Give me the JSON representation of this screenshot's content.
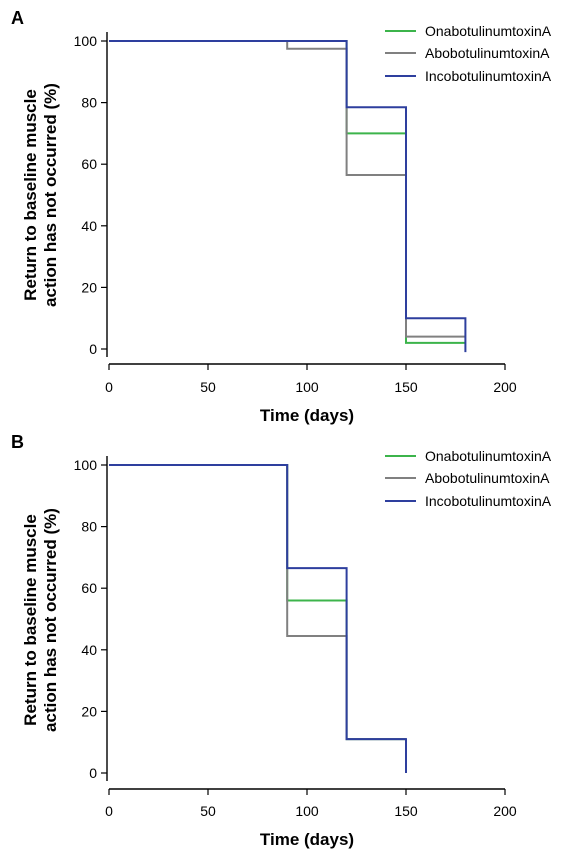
{
  "chart_data": [
    {
      "type": "line",
      "panel_label": "A",
      "xlabel": "Time (days)",
      "ylabel_lines": [
        "Return to baseline muscle",
        "action has not occurred (%)"
      ],
      "xlim": [
        0,
        200
      ],
      "ylim": [
        0,
        100
      ],
      "xticks": [
        0,
        50,
        100,
        150,
        200
      ],
      "yticks": [
        0,
        20,
        40,
        60,
        80,
        100
      ],
      "grid": false,
      "legend_position": "top-right",
      "series": [
        {
          "name": "OnabotulinumtoxinA",
          "color": "#3cb44b",
          "step": "post",
          "x": [
            0,
            120,
            150,
            180
          ],
          "y": [
            100,
            70,
            2,
            2
          ],
          "end_drop_to": null
        },
        {
          "name": "AbobotulinumtoxinA",
          "color": "#808080",
          "step": "post",
          "x": [
            0,
            90,
            120,
            150,
            180
          ],
          "y": [
            100,
            97.5,
            56.5,
            4,
            4
          ],
          "end_drop_to": null
        },
        {
          "name": "IncobotulinumtoxinA",
          "color": "#2e3f9e",
          "step": "post",
          "x": [
            0,
            120,
            150,
            180
          ],
          "y": [
            100,
            78.5,
            10,
            10
          ],
          "end_drop_to": -1
        }
      ]
    },
    {
      "type": "line",
      "panel_label": "B",
      "xlabel": "Time (days)",
      "ylabel_lines": [
        "Return to baseline muscle",
        "action has not occurred (%)"
      ],
      "xlim": [
        0,
        200
      ],
      "ylim": [
        0,
        100
      ],
      "xticks": [
        0,
        50,
        100,
        150,
        200
      ],
      "yticks": [
        0,
        20,
        40,
        60,
        80,
        100
      ],
      "grid": false,
      "legend_position": "top-right",
      "series": [
        {
          "name": "OnabotulinumtoxinA",
          "color": "#3cb44b",
          "step": "post",
          "x": [
            0,
            90,
            120,
            150
          ],
          "y": [
            100,
            56,
            11,
            11
          ],
          "end_drop_to": null
        },
        {
          "name": "AbobotulinumtoxinA",
          "color": "#808080",
          "step": "post",
          "x": [
            0,
            90,
            120,
            150
          ],
          "y": [
            100,
            44.5,
            11,
            11
          ],
          "end_drop_to": null
        },
        {
          "name": "IncobotulinumtoxinA",
          "color": "#2e3f9e",
          "step": "post",
          "x": [
            0,
            90,
            120,
            150
          ],
          "y": [
            100,
            66.5,
            11,
            11
          ],
          "end_drop_to": 0
        }
      ]
    }
  ]
}
